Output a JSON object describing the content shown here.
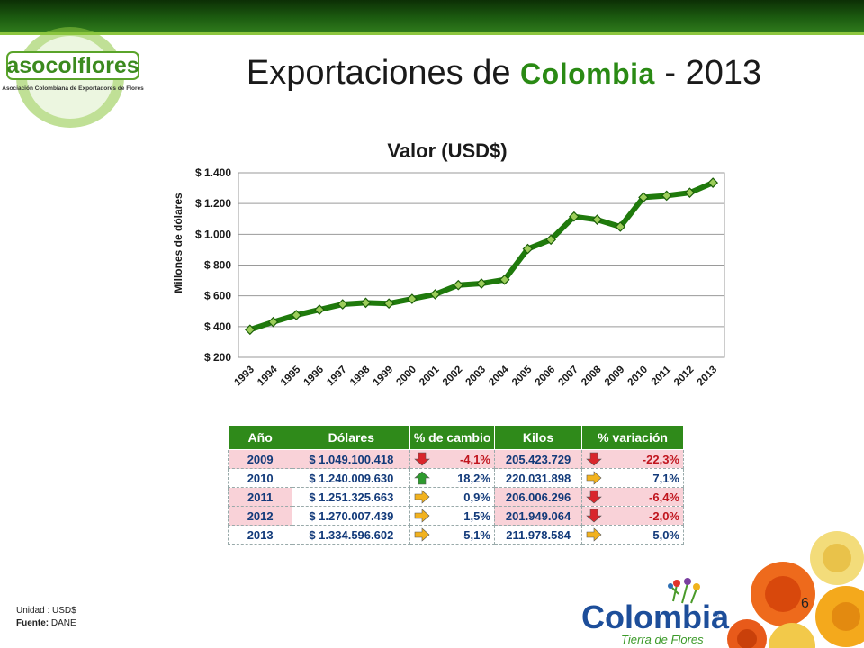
{
  "slide": {
    "title_prefix": "Exportaciones de ",
    "title_accent": "Colombia",
    "title_suffix": " - 2013",
    "page_number": "6"
  },
  "logo": {
    "name": "asocolflores",
    "tagline": "Asociación Colombiana de Exportadores de Flores"
  },
  "brand": {
    "name": "Colombia",
    "sub": "Tierra de Flores",
    "reg": "®"
  },
  "source": {
    "unit_label": "Unidad",
    "unit_value": ": USD$",
    "source_label": "Fuente:",
    "source_value": "DANE"
  },
  "chart_data": {
    "type": "line",
    "title": "Valor (USD$)",
    "xlabel": "",
    "ylabel": "Millones de dólares",
    "ylim": [
      200,
      1400
    ],
    "yticks": [
      200,
      400,
      600,
      800,
      1000,
      1200,
      1400
    ],
    "ytick_labels": [
      "$ 200",
      "$ 400",
      "$ 600",
      "$ 800",
      "$ 1.000",
      "$ 1.200",
      "$ 1.400"
    ],
    "grid": true,
    "legend": "none",
    "color": "#1f7a0c",
    "x": [
      "1993",
      "1994",
      "1995",
      "1996",
      "1997",
      "1998",
      "1999",
      "2000",
      "2001",
      "2002",
      "2003",
      "2004",
      "2005",
      "2006",
      "2007",
      "2008",
      "2009",
      "2010",
      "2011",
      "2012",
      "2013"
    ],
    "series": [
      {
        "values": [
          380,
          430,
          475,
          510,
          545,
          555,
          550,
          580,
          610,
          670,
          680,
          705,
          905,
          965,
          1115,
          1095,
          1049,
          1240,
          1251,
          1270,
          1335
        ]
      }
    ]
  },
  "table": {
    "headers": [
      "Año",
      "Dólares",
      "% de cambio",
      "Kilos",
      "% variación"
    ],
    "rows": [
      {
        "year": "2009",
        "usd": "$ 1.049.100.418",
        "change": "-4,1%",
        "change_dir": "down",
        "kilos": "205.423.729",
        "var": "-22,3%",
        "var_dir": "down"
      },
      {
        "year": "2010",
        "usd": "$ 1.240.009.630",
        "change": "18,2%",
        "change_dir": "up",
        "kilos": "220.031.898",
        "var": "7,1%",
        "var_dir": "right"
      },
      {
        "year": "2011",
        "usd": "$ 1.251.325.663",
        "change": "0,9%",
        "change_dir": "right",
        "kilos": "206.006.296",
        "var": "-6,4%",
        "var_dir": "down"
      },
      {
        "year": "2012",
        "usd": "$ 1.270.007.439",
        "change": "1,5%",
        "change_dir": "right",
        "kilos": "201.949.064",
        "var": "-2,0%",
        "var_dir": "down"
      },
      {
        "year": "2013",
        "usd": "$ 1.334.596.602",
        "change": "5,1%",
        "change_dir": "right",
        "kilos": "211.978.584",
        "var": "5,0%",
        "var_dir": "right"
      }
    ],
    "arrow_colors": {
      "down": "#d9262c",
      "up": "#2e9a2e",
      "right": "#f2b21e"
    }
  }
}
